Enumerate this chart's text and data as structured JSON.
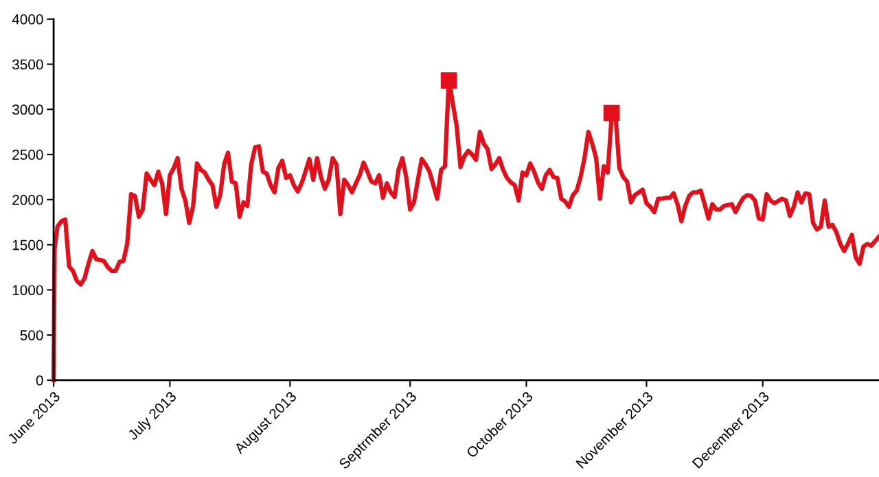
{
  "chart_data": {
    "type": "line",
    "xlim": [
      "2013-06-01",
      "2013-12-31"
    ],
    "xticks": [
      {
        "value": "2013-06-01",
        "label": "June 2013"
      },
      {
        "value": "2013-07-01",
        "label": "July 2013"
      },
      {
        "value": "2013-08-01",
        "label": "August 2013"
      },
      {
        "value": "2013-09-01",
        "label": "Septrmber 2013"
      },
      {
        "value": "2013-10-01",
        "label": "October 2013"
      },
      {
        "value": "2013-11-01",
        "label": "November 2013"
      },
      {
        "value": "2013-12-01",
        "label": "December 2013"
      }
    ],
    "ylim": [
      0,
      4000
    ],
    "yticks": [
      0,
      500,
      1000,
      1500,
      2000,
      2500,
      3000,
      3500,
      4000
    ],
    "grid": false,
    "series": [
      {
        "color": "#e3101b",
        "marker": "none",
        "line_style": "solid",
        "x": [
          "2013-06-01T00:00",
          "2013-06-01T06:00",
          "2013-06-02",
          "2013-06-03",
          "2013-06-04",
          "2013-06-05",
          "2013-06-06",
          "2013-06-07",
          "2013-06-08",
          "2013-06-09",
          "2013-06-10",
          "2013-06-11",
          "2013-06-12",
          "2013-06-14",
          "2013-06-15",
          "2013-06-16",
          "2013-06-17",
          "2013-06-18",
          "2013-06-19",
          "2013-06-20",
          "2013-06-21",
          "2013-06-22",
          "2013-06-23",
          "2013-06-24",
          "2013-06-25",
          "2013-06-26",
          "2013-06-27",
          "2013-06-28",
          "2013-06-29",
          "2013-06-30",
          "2013-07-01",
          "2013-07-02",
          "2013-07-03",
          "2013-07-04",
          "2013-07-05",
          "2013-07-06",
          "2013-07-07",
          "2013-07-08",
          "2013-07-09",
          "2013-07-10",
          "2013-07-11",
          "2013-07-12",
          "2013-07-13",
          "2013-07-14",
          "2013-07-15",
          "2013-07-16",
          "2013-07-17",
          "2013-07-18",
          "2013-07-19",
          "2013-07-20",
          "2013-07-21",
          "2013-07-22",
          "2013-07-23",
          "2013-07-24",
          "2013-07-25",
          "2013-07-26",
          "2013-07-27",
          "2013-07-28",
          "2013-07-29",
          "2013-07-30",
          "2013-07-31",
          "2013-08-01",
          "2013-08-02",
          "2013-08-03",
          "2013-08-04",
          "2013-08-05",
          "2013-08-06",
          "2013-08-07",
          "2013-08-08",
          "2013-08-09",
          "2013-08-10",
          "2013-08-11",
          "2013-08-12",
          "2013-08-13",
          "2013-08-14",
          "2013-08-15",
          "2013-08-16",
          "2013-08-17",
          "2013-08-18",
          "2013-08-19",
          "2013-08-20",
          "2013-08-21",
          "2013-08-22",
          "2013-08-23",
          "2013-08-24",
          "2013-08-25",
          "2013-08-26",
          "2013-08-27",
          "2013-08-28",
          "2013-08-29",
          "2013-08-30",
          "2013-08-31",
          "2013-09-01",
          "2013-09-02",
          "2013-09-03",
          "2013-09-04",
          "2013-09-05",
          "2013-09-06",
          "2013-09-07",
          "2013-09-08",
          "2013-09-09",
          "2013-09-10",
          "2013-09-11",
          "2013-09-12",
          "2013-09-13",
          "2013-09-14",
          "2013-09-15",
          "2013-09-16",
          "2013-09-17",
          "2013-09-18",
          "2013-09-19",
          "2013-09-20",
          "2013-09-21",
          "2013-09-22",
          "2013-09-23",
          "2013-09-24",
          "2013-09-25",
          "2013-09-26",
          "2013-09-27",
          "2013-09-28",
          "2013-09-29",
          "2013-09-30",
          "2013-10-01",
          "2013-10-02",
          "2013-10-03",
          "2013-10-04",
          "2013-10-05",
          "2013-10-06",
          "2013-10-07",
          "2013-10-08",
          "2013-10-09",
          "2013-10-10",
          "2013-10-11",
          "2013-10-12",
          "2013-10-13",
          "2013-10-14",
          "2013-10-15",
          "2013-10-16",
          "2013-10-17",
          "2013-10-18",
          "2013-10-19",
          "2013-10-20",
          "2013-10-21",
          "2013-10-22",
          "2013-10-23",
          "2013-10-24",
          "2013-10-25",
          "2013-10-26",
          "2013-10-27",
          "2013-10-28",
          "2013-10-29",
          "2013-10-30",
          "2013-10-31",
          "2013-11-01",
          "2013-11-02",
          "2013-11-03",
          "2013-11-04",
          "2013-11-05",
          "2013-11-06",
          "2013-11-07",
          "2013-11-08",
          "2013-11-09",
          "2013-11-10",
          "2013-11-11",
          "2013-11-12",
          "2013-11-13",
          "2013-11-14",
          "2013-11-15",
          "2013-11-16",
          "2013-11-17",
          "2013-11-18",
          "2013-11-19",
          "2013-11-20",
          "2013-11-21",
          "2013-11-23",
          "2013-11-24",
          "2013-11-25",
          "2013-11-26",
          "2013-11-27",
          "2013-11-28",
          "2013-11-29",
          "2013-11-30",
          "2013-12-01",
          "2013-12-02",
          "2013-12-03",
          "2013-12-04",
          "2013-12-06",
          "2013-12-07",
          "2013-12-08",
          "2013-12-09",
          "2013-12-10",
          "2013-12-11",
          "2013-12-12",
          "2013-12-13",
          "2013-12-14",
          "2013-12-15",
          "2013-12-16",
          "2013-12-17",
          "2013-12-18",
          "2013-12-19",
          "2013-12-20",
          "2013-12-21",
          "2013-12-22",
          "2013-12-23",
          "2013-12-24",
          "2013-12-25",
          "2013-12-26",
          "2013-12-27",
          "2013-12-28",
          "2013-12-29",
          "2013-12-31"
        ],
        "values": [
          0,
          1460,
          1700,
          1760,
          1780,
          1260,
          1210,
          1100,
          1060,
          1130,
          1290,
          1430,
          1340,
          1320,
          1250,
          1210,
          1210,
          1310,
          1320,
          1510,
          2060,
          2040,
          1810,
          1890,
          2290,
          2220,
          2160,
          2310,
          2180,
          1840,
          2270,
          2350,
          2460,
          2120,
          1990,
          1740,
          1930,
          2400,
          2330,
          2300,
          2220,
          2160,
          1920,
          2050,
          2390,
          2520,
          2200,
          2180,
          1810,
          1970,
          1930,
          2390,
          2580,
          2590,
          2310,
          2290,
          2160,
          2080,
          2350,
          2430,
          2240,
          2270,
          2160,
          2090,
          2180,
          2310,
          2450,
          2220,
          2460,
          2250,
          2120,
          2220,
          2460,
          2390,
          1840,
          2220,
          2160,
          2080,
          2180,
          2270,
          2410,
          2310,
          2200,
          2180,
          2270,
          2020,
          2180,
          2080,
          2030,
          2330,
          2460,
          2250,
          1890,
          1970,
          2220,
          2450,
          2390,
          2310,
          2160,
          2010,
          2330,
          2370,
          3340,
          3070,
          2820,
          2360,
          2480,
          2540,
          2500,
          2440,
          2750,
          2620,
          2560,
          2340,
          2390,
          2460,
          2330,
          2240,
          2190,
          2160,
          1990,
          2300,
          2270,
          2400,
          2310,
          2190,
          2120,
          2270,
          2330,
          2250,
          2240,
          2010,
          1980,
          1920,
          2050,
          2100,
          2250,
          2460,
          2750,
          2620,
          2460,
          2010,
          2370,
          2300,
          2920,
          2940,
          2350,
          2250,
          2200,
          1970,
          2050,
          2080,
          2110,
          1960,
          1920,
          1860,
          2010,
          2010,
          2020,
          2020,
          2070,
          1950,
          1760,
          1930,
          2040,
          2080,
          2080,
          2100,
          1950,
          1790,
          1950,
          1890,
          1890,
          1930,
          1950,
          1860,
          1950,
          2020,
          2050,
          2040,
          1990,
          1790,
          1780,
          2060,
          1990,
          1960,
          2010,
          1990,
          1820,
          1920,
          2080,
          1970,
          2070,
          2060,
          1740,
          1670,
          1700,
          1990,
          1700,
          1720,
          1640,
          1510,
          1430,
          1510,
          1610,
          1360,
          1290,
          1480,
          1510,
          1490,
          1590
        ]
      },
      {
        "type": "scatter",
        "color": "#e3101b",
        "marker": "square",
        "x": [
          "2013-09-11",
          "2013-10-23"
        ],
        "values": [
          3320,
          2960
        ]
      }
    ]
  }
}
